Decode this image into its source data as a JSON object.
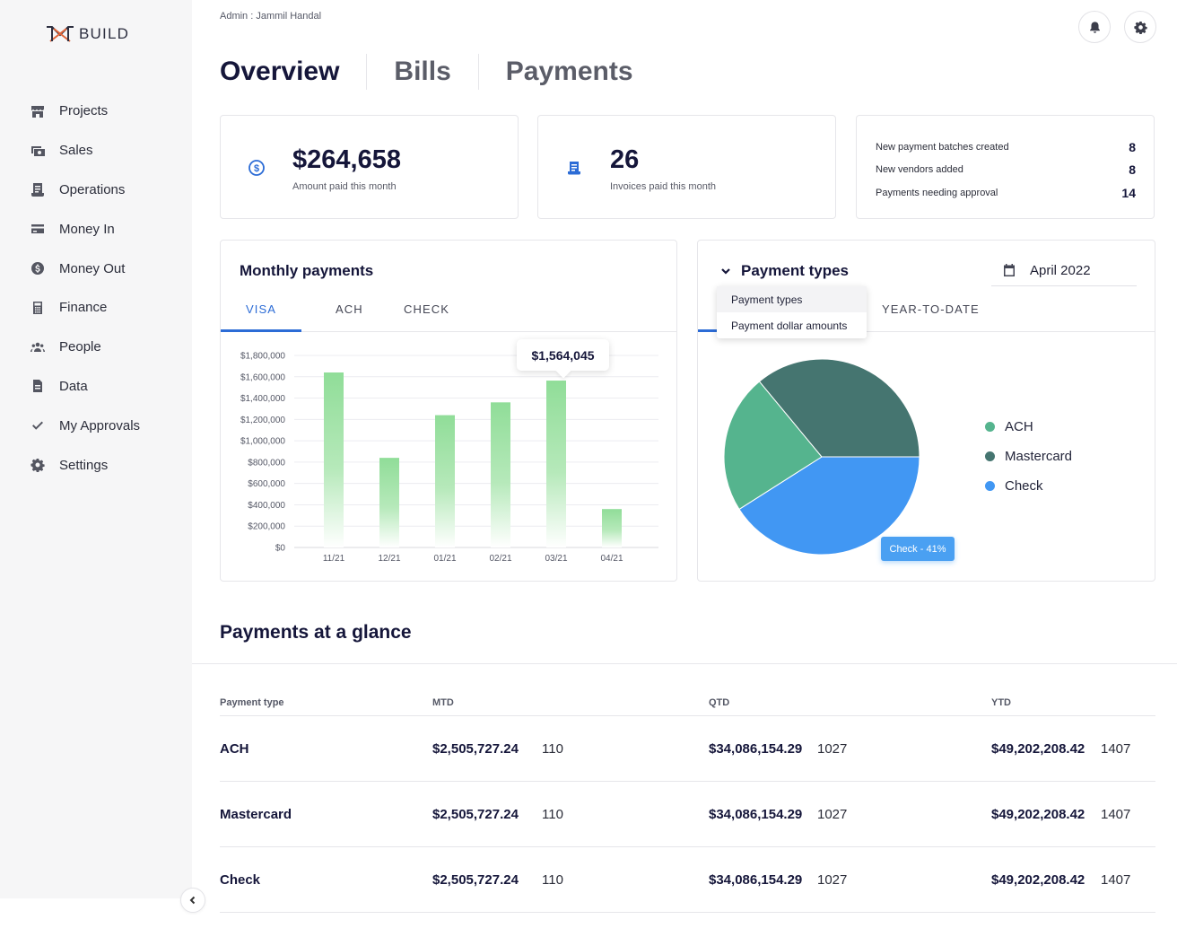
{
  "brand": {
    "name": "BUILD",
    "logo_color": "#e0653a"
  },
  "sidebar": {
    "items": [
      {
        "label": "Projects",
        "icon": "store-icon"
      },
      {
        "label": "Sales",
        "icon": "cash-icon"
      },
      {
        "label": "Operations",
        "icon": "receipt-icon"
      },
      {
        "label": "Money In",
        "icon": "credit-card-icon"
      },
      {
        "label": "Money Out",
        "icon": "dollar-coin-icon"
      },
      {
        "label": "Finance",
        "icon": "calculator-icon"
      },
      {
        "label": "People",
        "icon": "people-icon"
      },
      {
        "label": "Data",
        "icon": "document-icon"
      },
      {
        "label": "My Approvals",
        "icon": "check-icon"
      },
      {
        "label": "Settings",
        "icon": "gear-icon"
      }
    ]
  },
  "header": {
    "breadcrumb": "Admin : Jammil Handal",
    "tabs": [
      "Overview",
      "Bills",
      "Payments"
    ],
    "active_tab": "Overview"
  },
  "stats": {
    "amount_paid": {
      "value": "$264,658",
      "label": "Amount paid this month"
    },
    "invoices_paid": {
      "value": "26",
      "label": "Invoices paid this month"
    },
    "summary": [
      {
        "label": "New payment batches created",
        "value": "8"
      },
      {
        "label": "New vendors added",
        "value": "8"
      },
      {
        "label": "Payments needing approval",
        "value": "14"
      }
    ]
  },
  "monthly": {
    "title": "Monthly payments",
    "tabs": [
      "VISA",
      "ACH",
      "CHECK"
    ],
    "active_tab": "VISA",
    "tooltip": "$1,564,045"
  },
  "payment_types": {
    "title": "Payment types",
    "date": "April 2022",
    "tab_ytd": "YEAR-TO-DATE",
    "dropdown": [
      "Payment types",
      "Payment dollar amounts"
    ],
    "legend": [
      {
        "label": "ACH",
        "color": "#55b48e"
      },
      {
        "label": "Mastercard",
        "color": "#457570"
      },
      {
        "label": "Check",
        "color": "#4197f3"
      }
    ],
    "tooltip": "Check - 41%"
  },
  "chart_data": [
    {
      "type": "bar",
      "categories": [
        "11/21",
        "12/21",
        "01/21",
        "02/21",
        "03/21",
        "04/21"
      ],
      "values": [
        1640000,
        840000,
        1240000,
        1360000,
        1564045,
        360000
      ],
      "ylim": [
        0,
        1800000
      ],
      "yticks": [
        "$0",
        "$200,000",
        "$400,000",
        "$600,000",
        "$800,000",
        "$1,000,000",
        "$1,200,000",
        "$1,400,000",
        "$1,600,000",
        "$1,800,000"
      ],
      "grid": true,
      "color": "#90dd98"
    },
    {
      "type": "pie",
      "labels": [
        "ACH",
        "Mastercard",
        "Check"
      ],
      "values": [
        23,
        36,
        41
      ],
      "colors": [
        "#55b48e",
        "#457570",
        "#4197f3"
      ],
      "legend": "right"
    }
  ],
  "glance": {
    "title": "Payments at a glance",
    "columns": [
      "Payment type",
      "MTD",
      "QTD",
      "YTD"
    ],
    "rows": [
      {
        "type": "ACH",
        "mtd": "$2,505,727.24",
        "mtd_count": "110",
        "qtd": "$34,086,154.29",
        "qtd_count": "1027",
        "ytd": "$49,202,208.42",
        "ytd_count": "1407"
      },
      {
        "type": "Mastercard",
        "mtd": "$2,505,727.24",
        "mtd_count": "110",
        "qtd": "$34,086,154.29",
        "qtd_count": "1027",
        "ytd": "$49,202,208.42",
        "ytd_count": "1407"
      },
      {
        "type": "Check",
        "mtd": "$2,505,727.24",
        "mtd_count": "110",
        "qtd": "$34,086,154.29",
        "qtd_count": "1027",
        "ytd": "$49,202,208.42",
        "ytd_count": "1407"
      }
    ]
  }
}
